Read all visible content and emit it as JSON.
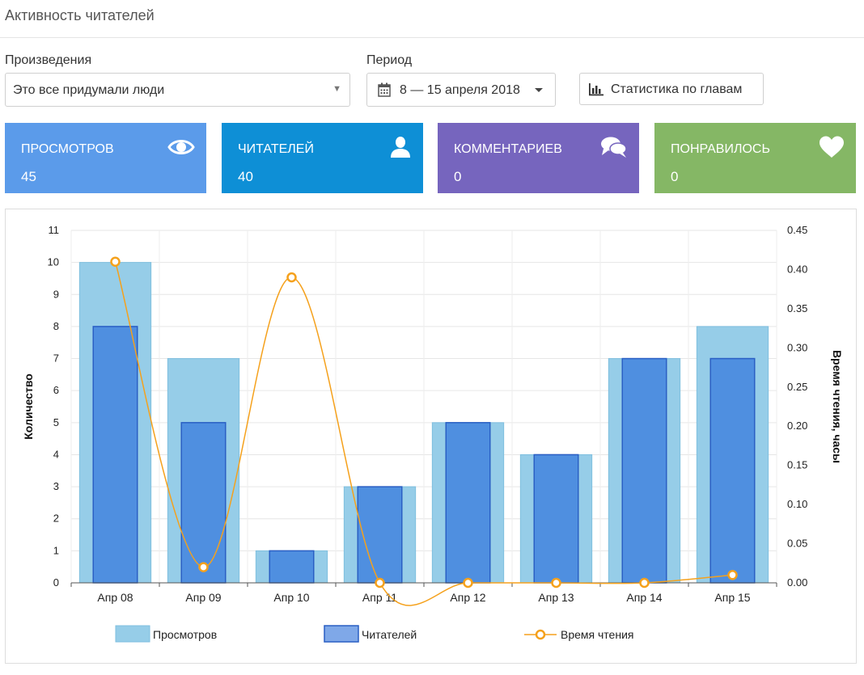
{
  "header": {
    "title": "Активность читателей"
  },
  "filters": {
    "works_label": "Произведения",
    "works_value": "Это все придумали люди",
    "period_label": "Период",
    "period_value": "8 — 15 апреля 2018",
    "chapter_stats_label": "Статистика по главам"
  },
  "tiles": [
    {
      "label": "Просмотров",
      "value": "45",
      "icon": "eye-icon",
      "color": "#5b9bea"
    },
    {
      "label": "Читателей",
      "value": "40",
      "icon": "user-icon",
      "color": "#0e8fd6"
    },
    {
      "label": "Комментариев",
      "value": "0",
      "icon": "comments-icon",
      "color": "#7665be"
    },
    {
      "label": "Понравилось",
      "value": "0",
      "icon": "heart-icon",
      "color": "#85b765"
    }
  ],
  "chart_data": {
    "type": "bar",
    "categories": [
      "Апр 08",
      "Апр 09",
      "Апр 10",
      "Апр 11",
      "Апр 12",
      "Апр 13",
      "Апр 14",
      "Апр 15"
    ],
    "series": [
      {
        "name": "Просмотров",
        "type": "bar",
        "axis": "left",
        "color": "#96cde8",
        "values": [
          10,
          7,
          1,
          3,
          5,
          4,
          7,
          8
        ]
      },
      {
        "name": "Читателей",
        "type": "bar",
        "axis": "left",
        "color": "#4f8fe0",
        "values": [
          8,
          5,
          1,
          3,
          5,
          4,
          7,
          7
        ]
      },
      {
        "name": "Время чтения",
        "type": "line",
        "axis": "right",
        "color": "#f5a11c",
        "values": [
          0.41,
          0.02,
          0.39,
          0.0,
          0.0,
          0.0,
          0.0,
          0.01
        ]
      }
    ],
    "ylabel": "Количество",
    "ylim": [
      0,
      11
    ],
    "yticks": [
      "0",
      "1",
      "2",
      "3",
      "4",
      "5",
      "6",
      "7",
      "8",
      "9",
      "10",
      "11"
    ],
    "y2label": "Время чтения, часы",
    "y2lim": [
      0,
      0.45
    ],
    "y2ticks": [
      "0.00",
      "0.05",
      "0.10",
      "0.15",
      "0.20",
      "0.25",
      "0.30",
      "0.35",
      "0.40",
      "0.45"
    ],
    "grid": true,
    "legend_position": "bottom"
  }
}
